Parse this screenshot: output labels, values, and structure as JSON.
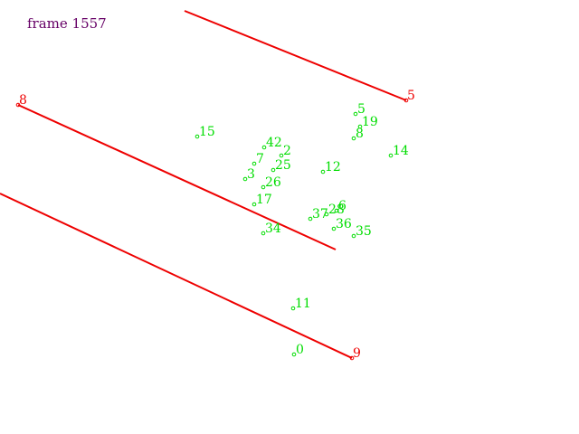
{
  "title": "frame 1557",
  "colors": {
    "title": "#660066",
    "lines": "#ee0000",
    "points": "#00dd00",
    "background": "#ffffff"
  },
  "segments": [
    {
      "label": "5",
      "labeled_end": "right"
    },
    {
      "label": "8",
      "labeled_end": "left"
    },
    {
      "label": "9",
      "labeled_end": "right"
    }
  ],
  "points": [
    "5",
    "19",
    "8",
    "14",
    "42",
    "2",
    "7",
    "25",
    "12",
    "3",
    "26",
    "15",
    "17",
    "37",
    "28",
    "6",
    "36",
    "35",
    "34",
    "11",
    "0"
  ]
}
